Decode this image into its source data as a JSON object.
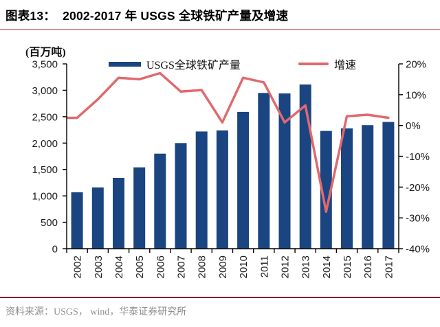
{
  "header": {
    "title": "图表13：  2002-2017 年 USGS 全球铁矿产量及增速"
  },
  "footer": {
    "source": "资料来源：USGS， wind，华泰证券研究所"
  },
  "colors": {
    "bar": "#1a4580",
    "line": "#e0696e",
    "title_underline": "#d58f98",
    "footer_rule": "#8b1c26",
    "footer_text": "#8f8f8f",
    "axis": "#000000"
  },
  "chart_data": {
    "type": "bar+line",
    "title": "2002-2017 年 USGS 全球铁矿产量及增速",
    "unit_label": "(百万吨)",
    "grid": false,
    "legend_position": "top",
    "categories": [
      "2002",
      "2003",
      "2004",
      "2005",
      "2006",
      "2007",
      "2008",
      "2009",
      "2010",
      "2011",
      "2012",
      "2013",
      "2014",
      "2015",
      "2016",
      "2017"
    ],
    "series": [
      {
        "name": "USGS全球铁矿产量",
        "type": "bar",
        "axis": "left",
        "color": "#1a4580",
        "values": [
          1070,
          1160,
          1340,
          1540,
          1800,
          2000,
          2220,
          2240,
          2590,
          2950,
          2940,
          3110,
          2230,
          2280,
          2340,
          2400
        ]
      },
      {
        "name": "增速",
        "type": "line",
        "axis": "right",
        "color": "#e0696e",
        "values_pct": [
          2.5,
          8.5,
          15.5,
          15,
          17,
          11,
          11.5,
          1,
          15.5,
          14,
          1,
          6.5,
          -28,
          3,
          3.5,
          2.5
        ]
      }
    ],
    "left_axis": {
      "label": "(百万吨)",
      "min": 0,
      "max": 3500,
      "tick_values": [
        0,
        500,
        1000,
        1500,
        2000,
        2500,
        3000,
        3500
      ],
      "tick_labels": [
        "0",
        "500",
        "1,000",
        "1,500",
        "2,000",
        "2,500",
        "3,000",
        "3,500"
      ]
    },
    "right_axis": {
      "unit": "%",
      "min": -40,
      "max": 20,
      "tick_values": [
        -40,
        -30,
        -20,
        -10,
        0,
        10,
        20
      ],
      "tick_labels": [
        "-40%",
        "-30%",
        "-20%",
        "-10%",
        "0%",
        "10%",
        "20%"
      ]
    }
  }
}
